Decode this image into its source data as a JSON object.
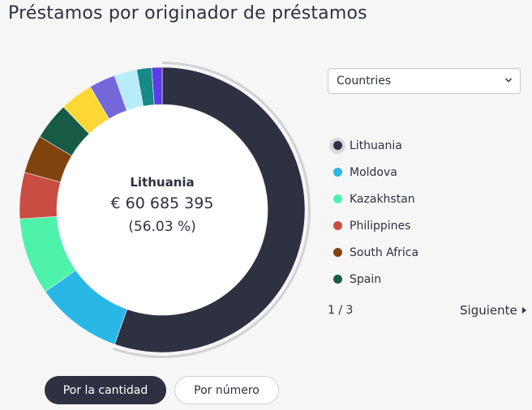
{
  "title": "Préstamos por originador de préstamos",
  "center": {
    "name": "Lithuania",
    "amount": "€ 60 685 395",
    "percent": "(56.03 %)"
  },
  "selector": {
    "value": "Countries",
    "icon": "chevron-down-icon"
  },
  "legend": [
    {
      "label": "Lithuania",
      "color": "#2d3142",
      "active": true
    },
    {
      "label": "Moldova",
      "color": "#29b7e6"
    },
    {
      "label": "Kazakhstan",
      "color": "#4ef2ab"
    },
    {
      "label": "Philippines",
      "color": "#c94d42"
    },
    {
      "label": "South Africa",
      "color": "#7f430e"
    },
    {
      "label": "Spain",
      "color": "#175a45"
    }
  ],
  "pager": {
    "page": "1 / 3",
    "next_label": "Siguiente"
  },
  "buttons": {
    "by_amount": "Por la cantidad",
    "by_number": "Por número"
  },
  "chart_data": {
    "type": "pie",
    "slices": [
      {
        "label": "Lithuania",
        "value": 56.03,
        "color": "#2d3142"
      },
      {
        "label": "Moldova",
        "value": 10.0,
        "color": "#29b7e6"
      },
      {
        "label": "Kazakhstan",
        "value": 8.8,
        "color": "#4ef2ab"
      },
      {
        "label": "Philippines",
        "value": 5.3,
        "color": "#c94d42"
      },
      {
        "label": "South Africa",
        "value": 4.4,
        "color": "#7f430e"
      },
      {
        "label": "Spain",
        "value": 4.3,
        "color": "#175a45"
      },
      {
        "label": "",
        "value": 3.8,
        "color": "#fdd835"
      },
      {
        "label": "",
        "value": 3.0,
        "color": "#7467d9"
      },
      {
        "label": "",
        "value": 2.6,
        "color": "#b7ecfb"
      },
      {
        "label": "",
        "value": 1.7,
        "color": "#158a86"
      },
      {
        "label": "",
        "value": 1.2,
        "color": "#5b3bea"
      }
    ]
  }
}
